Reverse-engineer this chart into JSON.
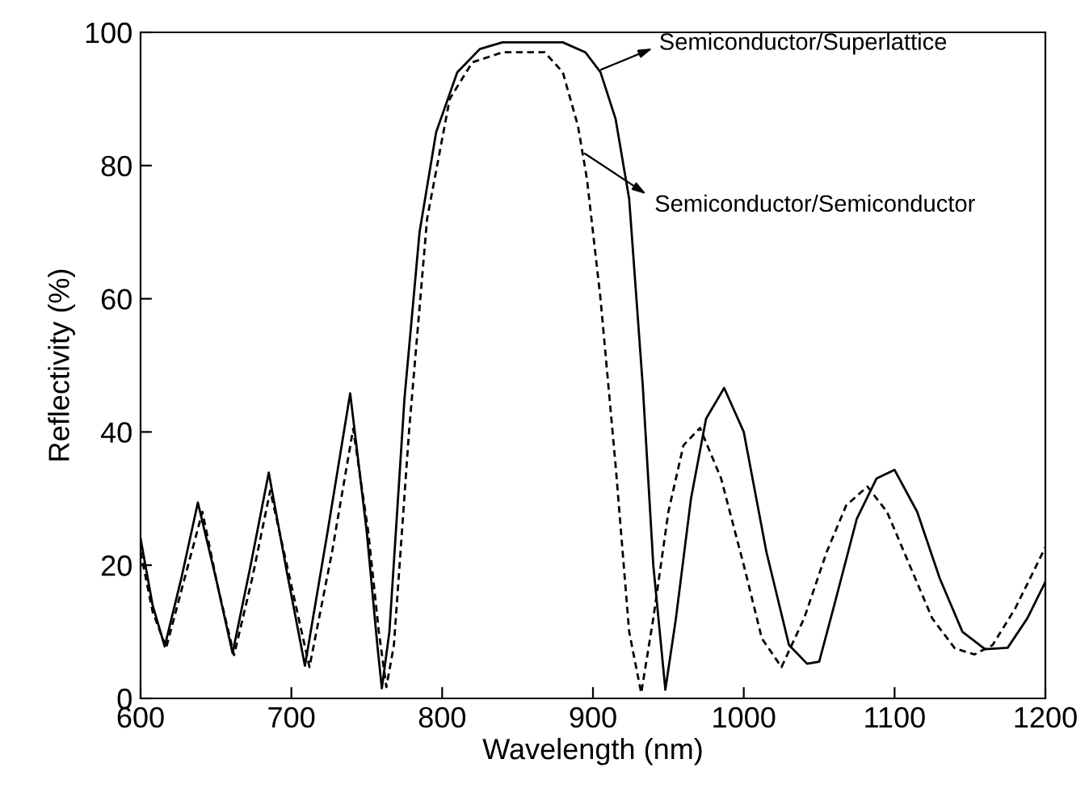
{
  "chart_data": {
    "type": "line",
    "xlabel": "Wavelength (nm)",
    "ylabel": "Reflectivity (%)",
    "xlim": [
      600,
      1200
    ],
    "xticks": [
      600,
      700,
      800,
      900,
      1000,
      1100,
      1200
    ],
    "ylim": [
      0,
      100
    ],
    "yticks": [
      0,
      20,
      40,
      60,
      80,
      100
    ],
    "grid": false,
    "legend": false,
    "marker": "none",
    "series": [
      {
        "color": "#000000",
        "line_style": "solid",
        "x": [
          600,
          608,
          616,
          627,
          638,
          650,
          661,
          673,
          685,
          697,
          709,
          724,
          739,
          750,
          757,
          760,
          765,
          775,
          785,
          796,
          810,
          825,
          840,
          880,
          895,
          905,
          915,
          924,
          933,
          940,
          948,
          955,
          965,
          975,
          987,
          1000,
          1015,
          1030,
          1042,
          1050,
          1060,
          1075,
          1088,
          1100,
          1115,
          1130,
          1145,
          1160,
          1175,
          1188,
          1200
        ],
        "values": [
          24,
          14,
          7.8,
          18,
          29.4,
          18,
          6.8,
          20,
          33.9,
          19,
          4.9,
          25,
          45.8,
          25,
          8,
          1.5,
          10,
          45,
          70,
          85,
          94,
          97.5,
          98.5,
          98.5,
          97,
          94,
          87,
          75,
          47,
          20,
          1.3,
          12,
          30,
          42,
          46.6,
          40,
          22,
          8,
          5.2,
          5.5,
          14,
          27,
          33,
          34.3,
          28,
          18,
          10,
          7.4,
          7.6,
          12,
          17.5
        ]
      },
      {
        "color": "#000000",
        "line_style": "dashed",
        "x": [
          600,
          608,
          617,
          628,
          641,
          651,
          662,
          674,
          686,
          699,
          712,
          727,
          741,
          751,
          758,
          763,
          768,
          778,
          790,
          805,
          820,
          840,
          868,
          880,
          890,
          896,
          905,
          915,
          924,
          932,
          940,
          950,
          960,
          971,
          985,
          1000,
          1012,
          1025,
          1040,
          1055,
          1068,
          1082,
          1095,
          1110,
          1125,
          1140,
          1153,
          1165,
          1180,
          1200
        ],
        "values": [
          22,
          13,
          7.6,
          17,
          28,
          17,
          6.5,
          18,
          31.2,
          18,
          4.7,
          22,
          40.5,
          25,
          10,
          1.7,
          8,
          40,
          72,
          90,
          95.5,
          97,
          97,
          94,
          86,
          78,
          60,
          35,
          10,
          0.8,
          12,
          28,
          38,
          40.6,
          33,
          20,
          9,
          4.7,
          12,
          22,
          29,
          31.8,
          28,
          20,
          12,
          7.5,
          6.6,
          8,
          13.5,
          22.7
        ]
      }
    ],
    "annotations": [
      "Semiconductor/Superlattice",
      "Semiconductor/Semiconductor"
    ]
  }
}
